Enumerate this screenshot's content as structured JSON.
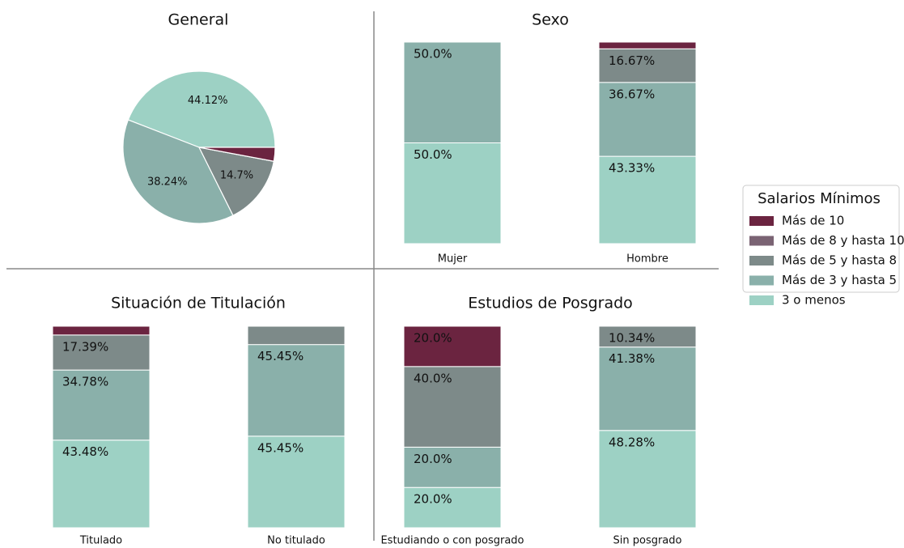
{
  "legend": {
    "title": "Salarios Mínimos",
    "series": [
      {
        "name": "Más de 10",
        "color": "#6b2440"
      },
      {
        "name": "Más de 8 y hasta 10",
        "color": "#7a6373"
      },
      {
        "name": "Más de 5 y hasta 8",
        "color": "#7d8a89"
      },
      {
        "name": "Más de 3 y hasta 5",
        "color": "#8ab0aa"
      },
      {
        "name": "3 o menos",
        "color": "#9dd1c4"
      }
    ]
  },
  "chart_data": [
    {
      "type": "pie",
      "title": "General",
      "values": [
        2.94,
        0,
        14.7,
        38.24,
        44.12
      ],
      "value_labels": [
        null,
        null,
        "14.7%",
        "38.24%",
        "44.12%"
      ]
    },
    {
      "type": "bar",
      "stacked": true,
      "title": "Sexo",
      "categories": [
        "Mujer",
        "Hombre"
      ],
      "ylim": [
        0,
        100
      ],
      "series": [
        {
          "values": [
            0,
            3.33
          ],
          "value_labels": [
            null,
            null
          ]
        },
        {
          "values": [
            0,
            0
          ],
          "value_labels": [
            null,
            null
          ]
        },
        {
          "values": [
            0,
            16.67
          ],
          "value_labels": [
            null,
            "16.67%"
          ]
        },
        {
          "values": [
            50,
            36.67
          ],
          "value_labels": [
            "50.0%",
            "36.67%"
          ]
        },
        {
          "values": [
            50,
            43.33
          ],
          "value_labels": [
            "50.0%",
            "43.33%"
          ]
        }
      ]
    },
    {
      "type": "bar",
      "stacked": true,
      "title": "Situación de Titulación",
      "categories": [
        "Titulado",
        "No titulado"
      ],
      "ylim": [
        0,
        100
      ],
      "series": [
        {
          "values": [
            4.35,
            0
          ],
          "value_labels": [
            null,
            null
          ]
        },
        {
          "values": [
            0,
            0
          ],
          "value_labels": [
            null,
            null
          ]
        },
        {
          "values": [
            17.39,
            9.09
          ],
          "value_labels": [
            "17.39%",
            null
          ]
        },
        {
          "values": [
            34.78,
            45.45
          ],
          "value_labels": [
            "34.78%",
            "45.45%"
          ]
        },
        {
          "values": [
            43.48,
            45.45
          ],
          "value_labels": [
            "43.48%",
            "45.45%"
          ]
        }
      ]
    },
    {
      "type": "bar",
      "stacked": true,
      "title": "Estudios de Posgrado",
      "categories": [
        "Estudiando o con posgrado",
        "Sin posgrado"
      ],
      "ylim": [
        0,
        100
      ],
      "series": [
        {
          "values": [
            20,
            0
          ],
          "value_labels": [
            "20.0%",
            null
          ]
        },
        {
          "values": [
            0,
            0
          ],
          "value_labels": [
            null,
            null
          ]
        },
        {
          "values": [
            40,
            10.34
          ],
          "value_labels": [
            "40.0%",
            "10.34%"
          ]
        },
        {
          "values": [
            20,
            41.38
          ],
          "value_labels": [
            "20.0%",
            "41.38%"
          ]
        },
        {
          "values": [
            20,
            48.28
          ],
          "value_labels": [
            "20.0%",
            "48.28%"
          ]
        }
      ]
    }
  ]
}
